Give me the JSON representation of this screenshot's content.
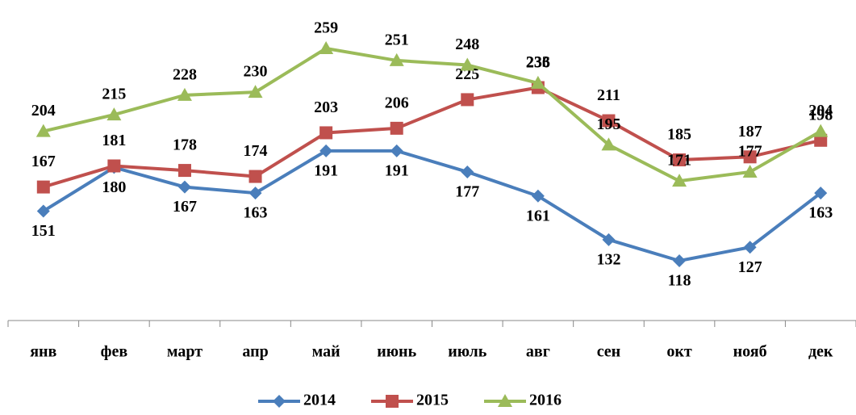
{
  "chart_data": {
    "type": "line",
    "categories": [
      "янв",
      "фев",
      "март",
      "апр",
      "май",
      "июнь",
      "июль",
      "авг",
      "сен",
      "окт",
      "нояб",
      "дек"
    ],
    "series": [
      {
        "name": "2014",
        "color": "#4a7ebb",
        "marker": "diamond",
        "values": [
          151,
          180,
          167,
          163,
          191,
          191,
          177,
          161,
          132,
          118,
          127,
          163
        ]
      },
      {
        "name": "2015",
        "color": "#c0504d",
        "marker": "square",
        "values": [
          167,
          181,
          178,
          174,
          203,
          206,
          225,
          233,
          211,
          185,
          187,
          198
        ]
      },
      {
        "name": "2016",
        "color": "#9bbb59",
        "marker": "triangle",
        "values": [
          204,
          215,
          228,
          230,
          259,
          251,
          248,
          236,
          195,
          171,
          177,
          204
        ]
      }
    ],
    "legend": "bottom"
  }
}
